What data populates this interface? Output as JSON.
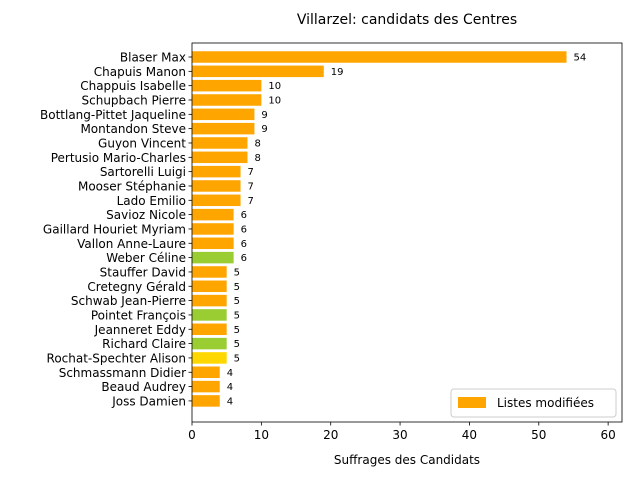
{
  "chart_data": {
    "type": "bar",
    "orientation": "horizontal",
    "title": "Villarzel: candidats des Centres",
    "xlabel": "Suffrages des Candidats",
    "ylabel": "",
    "xlim": [
      0,
      62
    ],
    "xticks": [
      "0",
      "10",
      "20",
      "30",
      "40",
      "50",
      "60"
    ],
    "grid": false,
    "legend": {
      "placement": "lower-right",
      "entries": [
        {
          "label": "Listes modifiées",
          "color": "#ffa500"
        }
      ]
    },
    "categories": [
      "Blaser Max",
      "Chapuis Manon",
      "Chappuis Isabelle",
      "Schupbach Pierre",
      "Bottlang-Pittet Jaqueline",
      "Montandon Steve",
      "Guyon Vincent",
      "Pertusio Mario-Charles",
      "Sartorelli Luigi",
      "Mooser Stéphanie",
      "Lado Emilio",
      "Savioz Nicole",
      "Gaillard Houriet Myriam",
      "Vallon Anne-Laure",
      "Weber Céline",
      "Stauffer David",
      "Cretegny Gérald",
      "Schwab Jean-Pierre",
      "Pointet François",
      "Jeanneret Eddy",
      "Richard Claire",
      "Rochat-Spechter Alison",
      "Schmassmann Didier",
      "Beaud Audrey",
      "Joss Damien"
    ],
    "values": [
      54,
      19,
      10,
      10,
      9,
      9,
      8,
      8,
      7,
      7,
      7,
      6,
      6,
      6,
      6,
      5,
      5,
      5,
      5,
      5,
      5,
      5,
      4,
      4,
      4
    ],
    "value_labels": [
      "54",
      "19",
      "10",
      "10",
      "9",
      "9",
      "8",
      "8",
      "7",
      "7",
      "7",
      "6",
      "6",
      "6",
      "6",
      "5",
      "5",
      "5",
      "5",
      "5",
      "5",
      "5",
      "4",
      "4",
      "4"
    ],
    "colors": [
      "#ffa500",
      "#ffa500",
      "#ffa500",
      "#ffa500",
      "#ffa500",
      "#ffa500",
      "#ffa500",
      "#ffa500",
      "#ffa500",
      "#ffa500",
      "#ffa500",
      "#ffa500",
      "#ffa500",
      "#ffa500",
      "#9acd32",
      "#ffa500",
      "#ffa500",
      "#ffa500",
      "#9acd32",
      "#ffa500",
      "#9acd32",
      "#ffd700",
      "#ffa500",
      "#ffa500",
      "#ffa500"
    ]
  }
}
